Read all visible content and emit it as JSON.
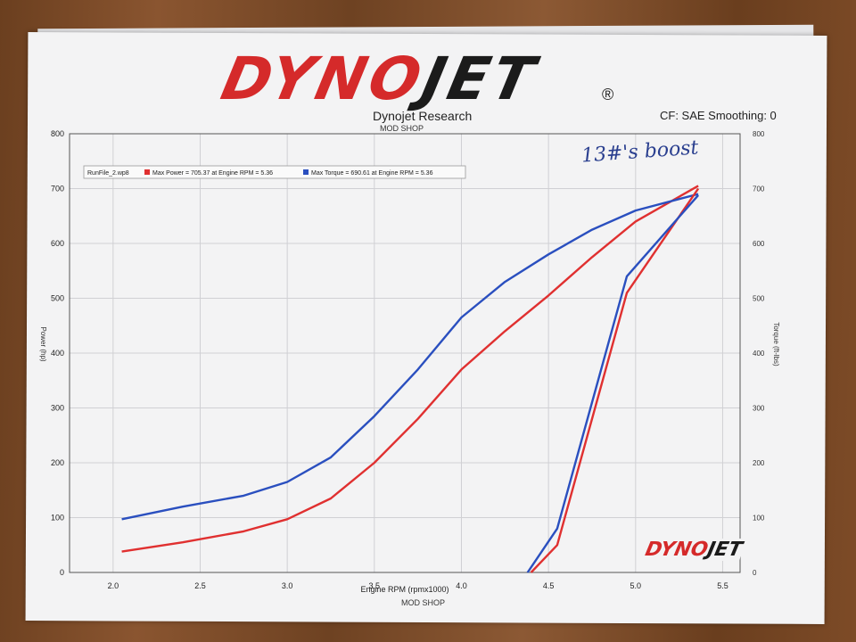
{
  "header": {
    "logo_dyno": "DYNO",
    "logo_jet": "JET",
    "logo_reg": "®",
    "title": "Dynojet Research",
    "subtitle": "MOD SHOP",
    "cf_label": "CF: SAE Smoothing: 0"
  },
  "footer": {
    "shop": "MOD SHOP"
  },
  "annotation": {
    "handwritten": "13#'s boost"
  },
  "colors": {
    "power": "#e03030",
    "torque": "#2a4fbf",
    "grid": "#d0d0d4"
  },
  "chart_data": {
    "type": "line",
    "xlabel": "Engine RPM (rpmx1000)",
    "ylabel": "Power (hp)",
    "y2label": "Torque (ft-lbs)",
    "xlim": [
      1.75,
      5.6
    ],
    "ylim": [
      0,
      800
    ],
    "y2lim": [
      0,
      800
    ],
    "x_ticks": [
      "2.0",
      "2.5",
      "3.0",
      "3.5",
      "4.0",
      "4.5",
      "5.0",
      "5.5"
    ],
    "y_ticks": [
      "0",
      "100",
      "200",
      "300",
      "400",
      "500",
      "600",
      "700",
      "800"
    ],
    "y2_ticks": [
      "0",
      "100",
      "200",
      "300",
      "400",
      "500",
      "600",
      "700",
      "800"
    ],
    "legend": {
      "run": "RunFile_2.wp8",
      "items": [
        "Max Power = 705.37 at Engine RPM = 5.36",
        "Max Torque = 690.61 at Engine RPM = 5.36"
      ]
    },
    "series": [
      {
        "key": "power_pull",
        "color": "#e03030",
        "points": [
          [
            2.05,
            38
          ],
          [
            2.4,
            55
          ],
          [
            2.75,
            75
          ],
          [
            3.0,
            97
          ],
          [
            3.25,
            135
          ],
          [
            3.5,
            200
          ],
          [
            3.75,
            280
          ],
          [
            4.0,
            370
          ],
          [
            4.25,
            440
          ],
          [
            4.5,
            505
          ],
          [
            4.75,
            575
          ],
          [
            5.0,
            640
          ],
          [
            5.36,
            705
          ]
        ]
      },
      {
        "key": "torque_pull",
        "color": "#2a4fbf",
        "points": [
          [
            2.05,
            97
          ],
          [
            2.4,
            120
          ],
          [
            2.75,
            140
          ],
          [
            3.0,
            165
          ],
          [
            3.25,
            210
          ],
          [
            3.5,
            285
          ],
          [
            3.75,
            370
          ],
          [
            4.0,
            465
          ],
          [
            4.25,
            530
          ],
          [
            4.5,
            580
          ],
          [
            4.75,
            625
          ],
          [
            5.0,
            660
          ],
          [
            5.36,
            690
          ]
        ]
      },
      {
        "key": "power_drop",
        "color": "#e03030",
        "points": [
          [
            4.4,
            0
          ],
          [
            4.55,
            50
          ],
          [
            4.95,
            510
          ],
          [
            5.36,
            700
          ]
        ]
      },
      {
        "key": "torque_drop",
        "color": "#2a4fbf",
        "points": [
          [
            4.38,
            0
          ],
          [
            4.55,
            80
          ],
          [
            4.95,
            540
          ],
          [
            5.36,
            688
          ]
        ]
      }
    ]
  }
}
